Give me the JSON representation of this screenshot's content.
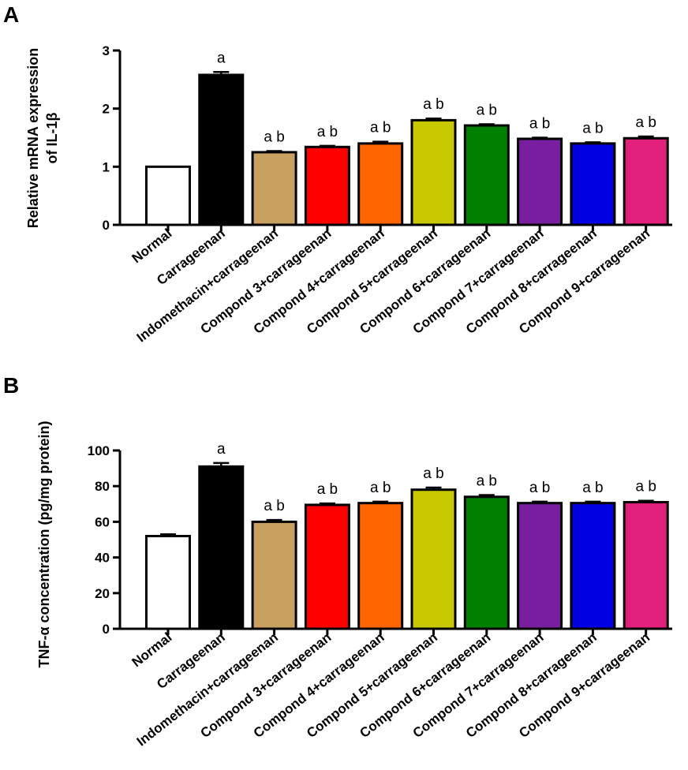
{
  "chart_data": [
    {
      "panel": "A",
      "type": "bar",
      "ylabel_lines": [
        "Relative mRNA expression",
        "of IL-1β"
      ],
      "ylim": [
        0,
        3
      ],
      "yticks": [
        "0",
        "1",
        "2",
        "3"
      ],
      "categories": [
        "Normal",
        "Carrageenan",
        "Indomethacin+carrageenan",
        "Compond 3+carrageenan",
        "Compond 4+carrageenan",
        "Compond 5+carrageenan",
        "Compond 6+carrageenan",
        "Compond 7+carrageenan",
        "Compond 8+carrageenan",
        "Compond 9+carrageenan"
      ],
      "values": [
        1.0,
        2.58,
        1.25,
        1.34,
        1.4,
        1.8,
        1.71,
        1.48,
        1.4,
        1.49
      ],
      "errors": [
        0.0,
        0.05,
        0.02,
        0.02,
        0.03,
        0.03,
        0.02,
        0.02,
        0.02,
        0.03
      ],
      "significance": [
        "",
        "a",
        "a b",
        "a b",
        "a b",
        "a b",
        "a b",
        "a b",
        "a b",
        "a b"
      ],
      "colors": [
        "#ffffff",
        "#000000",
        "#c8a060",
        "#ff0000",
        "#ff6600",
        "#c8c800",
        "#008000",
        "#7a1ea0",
        "#0000e0",
        "#e0207a"
      ]
    },
    {
      "panel": "B",
      "type": "bar",
      "ylabel_lines": [
        "TNF-α concentration (pg/mg protein)"
      ],
      "ylim": [
        0,
        100
      ],
      "yticks": [
        "0",
        "20",
        "40",
        "60",
        "80",
        "100"
      ],
      "categories": [
        "Normal",
        "Carrageenan",
        "Indomethacin+carrageenan",
        "Compond 3+carrageenan",
        "Compond 4+carrageenan",
        "Compond 5+carrageenan",
        "Compond 6+carrageenan",
        "Compond 7+carrageenan",
        "Compond 8+carrageenan",
        "Compond 9+carrageenan"
      ],
      "values": [
        52,
        91,
        60,
        69.5,
        70.5,
        78,
        74,
        70.5,
        70.5,
        71
      ],
      "errors": [
        1.0,
        2.0,
        1.0,
        0.8,
        0.8,
        1.2,
        1.0,
        0.8,
        0.8,
        0.8
      ],
      "significance": [
        "",
        "a",
        "a b",
        "a b",
        "a b",
        "a b",
        "a b",
        "a b",
        "a b",
        "a b"
      ],
      "colors": [
        "#ffffff",
        "#000000",
        "#c8a060",
        "#ff0000",
        "#ff6600",
        "#c8c800",
        "#008000",
        "#7a1ea0",
        "#0000e0",
        "#e0207a"
      ]
    }
  ]
}
